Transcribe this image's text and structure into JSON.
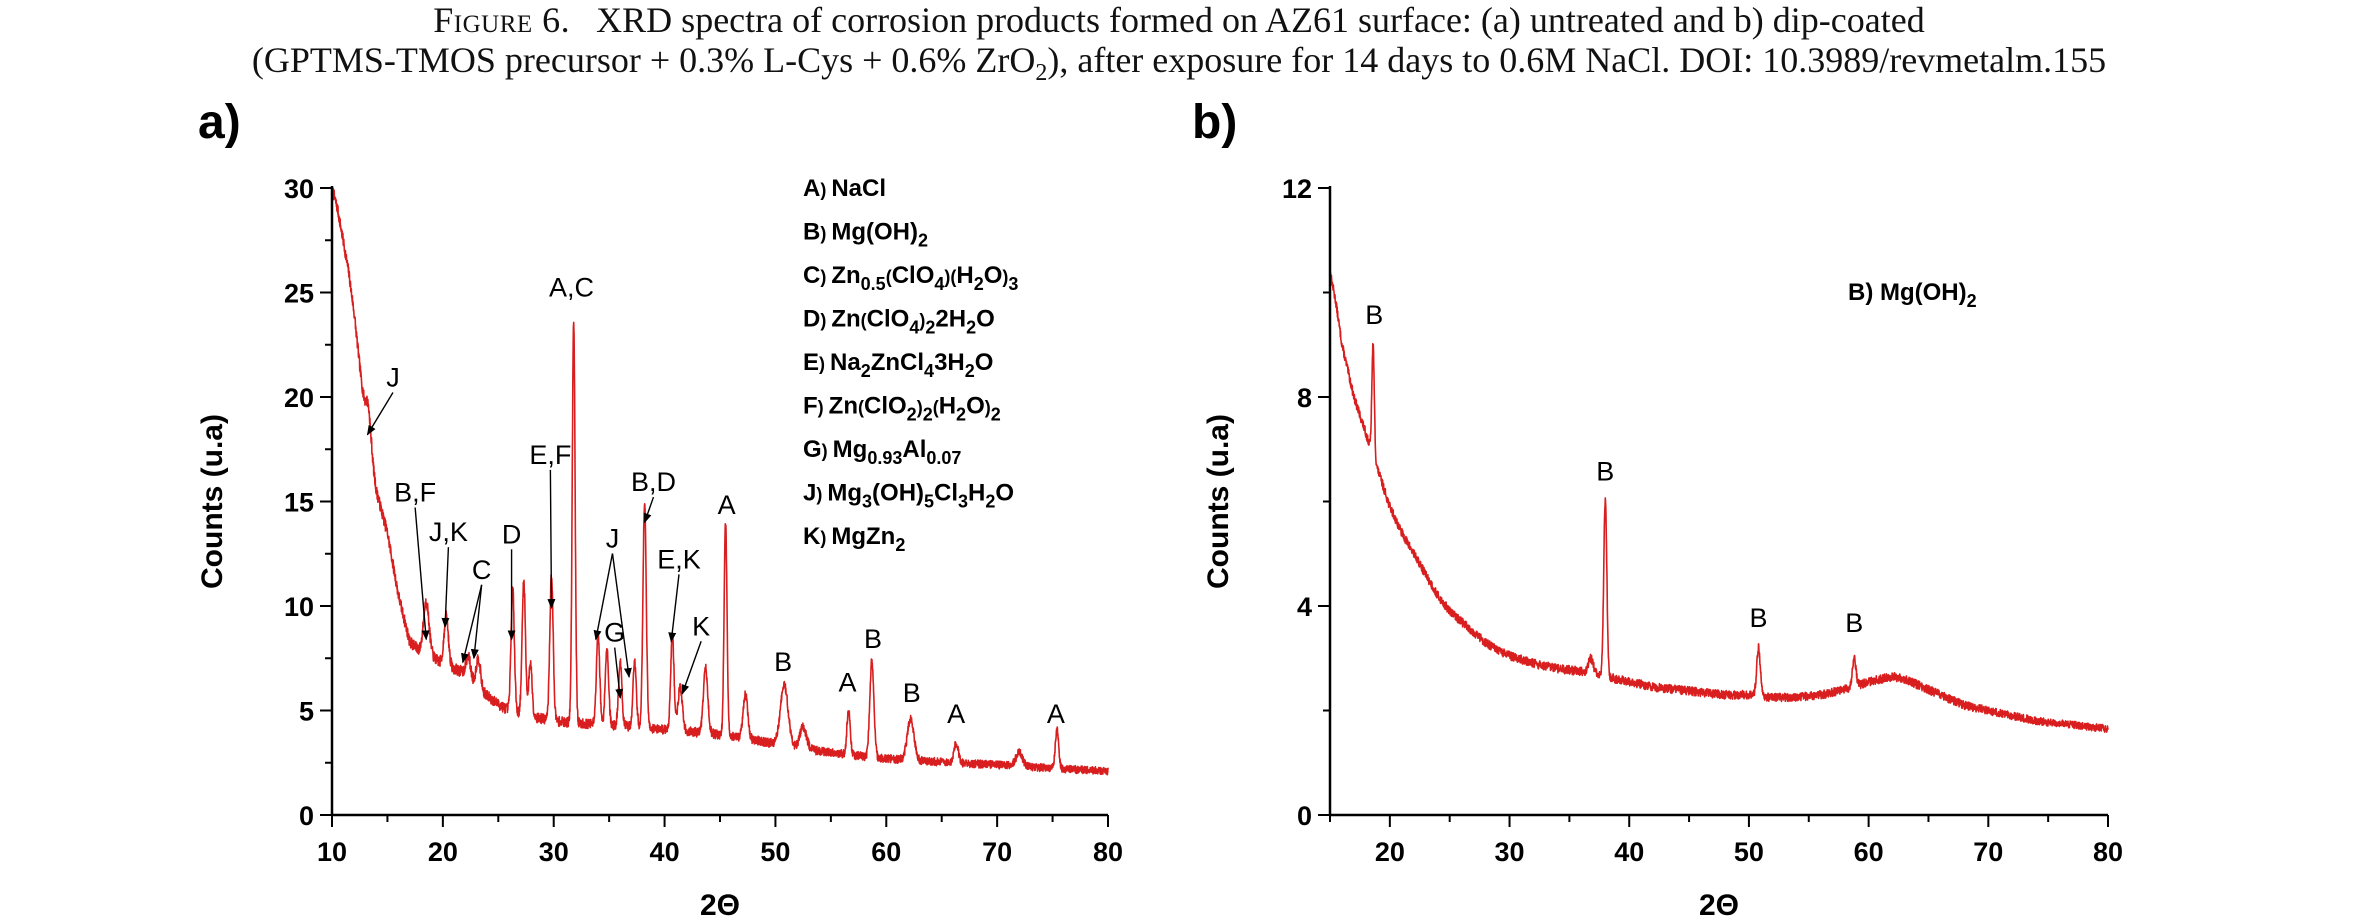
{
  "caption": {
    "label": "Figure 6.",
    "text_line1": "XRD spectra of corrosion products formed on AZ61 surface: (a) untreated and b) dip-coated",
    "text_line2_a": "(GPTMS-TMOS precursor + 0.3% L-Cys + 0.6% ZrO",
    "text_line2_sub": "2",
    "text_line2_b": "), after exposure for 14 days to 0.6M NaCl. DOI: 10.3989/revmetalm.155"
  },
  "colors": {
    "spectrum": "#d81e1e",
    "axis": "#000000",
    "annotation": "#000000"
  },
  "chart_data": [
    {
      "type": "line",
      "panel_label": "a)",
      "xlabel": "2Θ",
      "ylabel": "Counts (u.a)",
      "xlim": [
        10,
        80
      ],
      "ylim": [
        0,
        30
      ],
      "xticks": [
        10,
        20,
        30,
        40,
        50,
        60,
        70,
        80
      ],
      "yticks": [
        0,
        5,
        10,
        15,
        20,
        25,
        30
      ],
      "series": [
        {
          "background": [
            [
              10,
              30
            ],
            [
              10.5,
              29
            ],
            [
              11,
              27.5
            ],
            [
              11.5,
              26
            ],
            [
              12,
              24
            ],
            [
              12.5,
              21.5
            ],
            [
              13,
              19
            ],
            [
              13.5,
              17
            ],
            [
              14,
              15.5
            ],
            [
              15,
              13.5
            ],
            [
              16,
              10.5
            ],
            [
              17,
              8.3
            ],
            [
              18,
              7.8
            ],
            [
              19,
              7.6
            ],
            [
              20,
              7.2
            ],
            [
              21,
              7.0
            ],
            [
              22,
              6.8
            ],
            [
              23,
              6.2
            ],
            [
              24,
              5.7
            ],
            [
              25,
              5.3
            ],
            [
              26,
              5.0
            ],
            [
              28,
              4.7
            ],
            [
              30,
              4.5
            ],
            [
              32,
              4.4
            ],
            [
              35,
              4.3
            ],
            [
              38,
              4.2
            ],
            [
              40,
              4.1
            ],
            [
              42,
              4.0
            ],
            [
              44,
              3.9
            ],
            [
              46,
              3.8
            ],
            [
              48,
              3.6
            ],
            [
              50,
              3.4
            ],
            [
              52,
              3.2
            ],
            [
              55,
              3.0
            ],
            [
              58,
              2.8
            ],
            [
              60,
              2.7
            ],
            [
              63,
              2.6
            ],
            [
              66,
              2.5
            ],
            [
              70,
              2.4
            ],
            [
              73,
              2.3
            ],
            [
              76,
              2.2
            ],
            [
              80,
              2.1
            ]
          ],
          "peaks": [
            [
              13.3,
              19.5,
              0.25
            ],
            [
              18.5,
              10.2,
              0.25
            ],
            [
              20.3,
              9.5,
              0.2
            ],
            [
              22.3,
              7.6,
              0.2
            ],
            [
              23.2,
              7.5,
              0.2
            ],
            [
              26.3,
              10.8,
              0.15
            ],
            [
              27.3,
              11.2,
              0.15
            ],
            [
              27.9,
              7.3,
              0.15
            ],
            [
              29.8,
              11.5,
              0.15
            ],
            [
              31.8,
              23.7,
              0.13
            ],
            [
              34.0,
              8.6,
              0.15
            ],
            [
              34.8,
              8.0,
              0.15
            ],
            [
              36.0,
              7.3,
              0.15
            ],
            [
              37.3,
              7.3,
              0.15
            ],
            [
              38.2,
              14.9,
              0.15
            ],
            [
              40.7,
              8.6,
              0.15
            ],
            [
              41.4,
              6.1,
              0.2
            ],
            [
              43.7,
              7.0,
              0.2
            ],
            [
              45.5,
              14.0,
              0.13
            ],
            [
              47.3,
              5.8,
              0.2
            ],
            [
              50.8,
              6.2,
              0.35
            ],
            [
              52.5,
              4.2,
              0.3
            ],
            [
              56.6,
              5.0,
              0.15
            ],
            [
              58.7,
              7.4,
              0.18
            ],
            [
              62.2,
              4.6,
              0.3
            ],
            [
              66.3,
              3.4,
              0.2
            ],
            [
              72.0,
              3.0,
              0.3
            ],
            [
              75.4,
              4.1,
              0.15
            ]
          ]
        }
      ],
      "annotations": [
        {
          "text": "J",
          "x": 15.5,
          "y": 20.5,
          "arrow_to": [
            13.2,
            18.2
          ]
        },
        {
          "text": "A,C",
          "x": 31.6,
          "y": 24.8
        },
        {
          "text": "B,F",
          "x": 17.5,
          "y": 15.0,
          "arrow_to": [
            18.5,
            8.4
          ]
        },
        {
          "text": "J,K",
          "x": 20.5,
          "y": 13.1,
          "arrow_to": [
            20.2,
            9.0
          ]
        },
        {
          "text": "C",
          "x": 23.5,
          "y": 11.3,
          "arrow_to": [
            21.8,
            7.3
          ]
        },
        {
          "text": "",
          "x": 23.5,
          "y": 11.3,
          "arrow_to": [
            22.8,
            7.5
          ]
        },
        {
          "text": "D",
          "x": 26.2,
          "y": 13.0,
          "arrow_to": [
            26.2,
            8.4
          ]
        },
        {
          "text": "E,F",
          "x": 29.7,
          "y": 16.8,
          "arrow_to": [
            29.8,
            9.9
          ]
        },
        {
          "text": "J",
          "x": 35.3,
          "y": 12.8,
          "arrow_to": [
            33.8,
            8.4
          ]
        },
        {
          "text": "",
          "x": 35.3,
          "y": 12.8,
          "arrow_to": [
            36.8,
            6.6
          ]
        },
        {
          "text": "G",
          "x": 35.5,
          "y": 8.3,
          "arrow_to": [
            36.0,
            5.6
          ]
        },
        {
          "text": "B,D",
          "x": 39.0,
          "y": 15.5,
          "arrow_to": [
            38.2,
            14.0
          ]
        },
        {
          "text": "E,K",
          "x": 41.3,
          "y": 11.8,
          "arrow_to": [
            40.6,
            8.3
          ]
        },
        {
          "text": "K",
          "x": 43.3,
          "y": 8.6,
          "arrow_to": [
            41.6,
            5.8
          ]
        },
        {
          "text": "A",
          "x": 45.6,
          "y": 14.4
        },
        {
          "text": "B",
          "x": 50.7,
          "y": 6.9
        },
        {
          "text": "A",
          "x": 56.5,
          "y": 5.9
        },
        {
          "text": "B",
          "x": 58.8,
          "y": 8.0
        },
        {
          "text": "B",
          "x": 62.3,
          "y": 5.4
        },
        {
          "text": "A",
          "x": 66.3,
          "y": 4.4
        },
        {
          "text": "A",
          "x": 75.3,
          "y": 4.4
        }
      ],
      "legend": [
        [
          {
            "t": "A"
          },
          {
            "t": ") ",
            "s": "small"
          },
          {
            "t": "NaCl"
          }
        ],
        [
          {
            "t": "B"
          },
          {
            "t": ") ",
            "s": "small"
          },
          {
            "t": "Mg(OH)"
          },
          {
            "t": "2",
            "s": "sub"
          }
        ],
        [
          {
            "t": "C"
          },
          {
            "t": ") ",
            "s": "small"
          },
          {
            "t": "Zn"
          },
          {
            "t": "0.5",
            "s": "sub"
          },
          {
            "t": "(",
            "s": "small"
          },
          {
            "t": "ClO"
          },
          {
            "t": "4",
            "s": "sub"
          },
          {
            "t": ")(",
            "s": "small"
          },
          {
            "t": "H"
          },
          {
            "t": "2",
            "s": "sub"
          },
          {
            "t": "O"
          },
          {
            "t": ")",
            "s": "small"
          },
          {
            "t": "3",
            "s": "sub"
          }
        ],
        [
          {
            "t": "D"
          },
          {
            "t": ") ",
            "s": "small"
          },
          {
            "t": "Zn"
          },
          {
            "t": "(",
            "s": "small"
          },
          {
            "t": "ClO"
          },
          {
            "t": "4",
            "s": "sub"
          },
          {
            "t": ")",
            "s": "small"
          },
          {
            "t": "2",
            "s": "sub"
          },
          {
            "t": "2H"
          },
          {
            "t": "2",
            "s": "sub"
          },
          {
            "t": "O"
          }
        ],
        [
          {
            "t": "E"
          },
          {
            "t": ") ",
            "s": "small"
          },
          {
            "t": "Na"
          },
          {
            "t": "2",
            "s": "sub"
          },
          {
            "t": "ZnCl"
          },
          {
            "t": "4",
            "s": "sub"
          },
          {
            "t": "3H"
          },
          {
            "t": "2",
            "s": "sub"
          },
          {
            "t": "O"
          }
        ],
        [
          {
            "t": "F"
          },
          {
            "t": ") ",
            "s": "small"
          },
          {
            "t": "Zn"
          },
          {
            "t": "(",
            "s": "small"
          },
          {
            "t": "ClO"
          },
          {
            "t": "2",
            "s": "sub"
          },
          {
            "t": ")",
            "s": "small"
          },
          {
            "t": "2",
            "s": "sub"
          },
          {
            "t": "(",
            "s": "small"
          },
          {
            "t": "H"
          },
          {
            "t": "2",
            "s": "sub"
          },
          {
            "t": "O"
          },
          {
            "t": ")",
            "s": "small"
          },
          {
            "t": "2",
            "s": "sub"
          }
        ],
        [
          {
            "t": "G"
          },
          {
            "t": ") ",
            "s": "small"
          },
          {
            "t": "Mg"
          },
          {
            "t": "0.93",
            "s": "sub"
          },
          {
            "t": "Al"
          },
          {
            "t": "0.07",
            "s": "sub"
          }
        ],
        [
          {
            "t": "J"
          },
          {
            "t": ") ",
            "s": "small"
          },
          {
            "t": "Mg"
          },
          {
            "t": "3",
            "s": "sub"
          },
          {
            "t": "(OH)"
          },
          {
            "t": "5",
            "s": "sub"
          },
          {
            "t": "Cl"
          },
          {
            "t": "3",
            "s": "sub"
          },
          {
            "t": "H"
          },
          {
            "t": "2",
            "s": "sub"
          },
          {
            "t": "O"
          }
        ],
        [
          {
            "t": "K"
          },
          {
            "t": ") ",
            "s": "small"
          },
          {
            "t": "MgZn"
          },
          {
            "t": "2",
            "s": "sub"
          }
        ]
      ]
    },
    {
      "type": "line",
      "panel_label": "b)",
      "xlabel": "2Θ",
      "ylabel": "Counts (u.a)",
      "xlim": [
        15,
        80
      ],
      "ylim": [
        0,
        12
      ],
      "xticks": [
        20,
        30,
        40,
        50,
        60,
        70,
        80
      ],
      "yticks": [
        0,
        4,
        8,
        12
      ],
      "series": [
        {
          "background": [
            [
              15,
              10.4
            ],
            [
              15.5,
              9.8
            ],
            [
              16,
              9.0
            ],
            [
              17,
              8.0
            ],
            [
              18,
              7.3
            ],
            [
              19,
              6.6
            ],
            [
              20,
              5.9
            ],
            [
              21,
              5.4
            ],
            [
              22,
              5.0
            ],
            [
              23,
              4.6
            ],
            [
              24,
              4.2
            ],
            [
              25,
              3.9
            ],
            [
              26,
              3.7
            ],
            [
              27,
              3.5
            ],
            [
              28,
              3.3
            ],
            [
              29,
              3.15
            ],
            [
              30,
              3.05
            ],
            [
              32,
              2.9
            ],
            [
              34,
              2.8
            ],
            [
              36,
              2.75
            ],
            [
              38,
              2.65
            ],
            [
              40,
              2.55
            ],
            [
              42,
              2.45
            ],
            [
              44,
              2.4
            ],
            [
              46,
              2.35
            ],
            [
              48,
              2.3
            ],
            [
              50,
              2.3
            ],
            [
              52,
              2.25
            ],
            [
              54,
              2.25
            ],
            [
              56,
              2.3
            ],
            [
              58,
              2.4
            ],
            [
              60,
              2.55
            ],
            [
              61,
              2.6
            ],
            [
              62,
              2.65
            ],
            [
              63,
              2.6
            ],
            [
              64,
              2.5
            ],
            [
              66,
              2.3
            ],
            [
              68,
              2.1
            ],
            [
              70,
              2.0
            ],
            [
              72,
              1.9
            ],
            [
              74,
              1.8
            ],
            [
              76,
              1.75
            ],
            [
              78,
              1.7
            ],
            [
              80,
              1.65
            ]
          ],
          "peaks": [
            [
              18.6,
              9.0,
              0.1
            ],
            [
              38.0,
              6.0,
              0.13
            ],
            [
              50.8,
              3.2,
              0.15
            ],
            [
              58.8,
              3.0,
              0.15
            ],
            [
              36.8,
              3.0,
              0.2
            ]
          ]
        }
      ],
      "annotations": [
        {
          "text": "B",
          "x": 18.7,
          "y": 9.4
        },
        {
          "text": "B",
          "x": 38.0,
          "y": 6.4
        },
        {
          "text": "B",
          "x": 50.8,
          "y": 3.6
        },
        {
          "text": "B",
          "x": 58.8,
          "y": 3.5
        }
      ],
      "legend": [
        [
          {
            "t": "B) Mg(OH)"
          },
          {
            "t": "2",
            "s": "sub"
          }
        ]
      ]
    }
  ]
}
